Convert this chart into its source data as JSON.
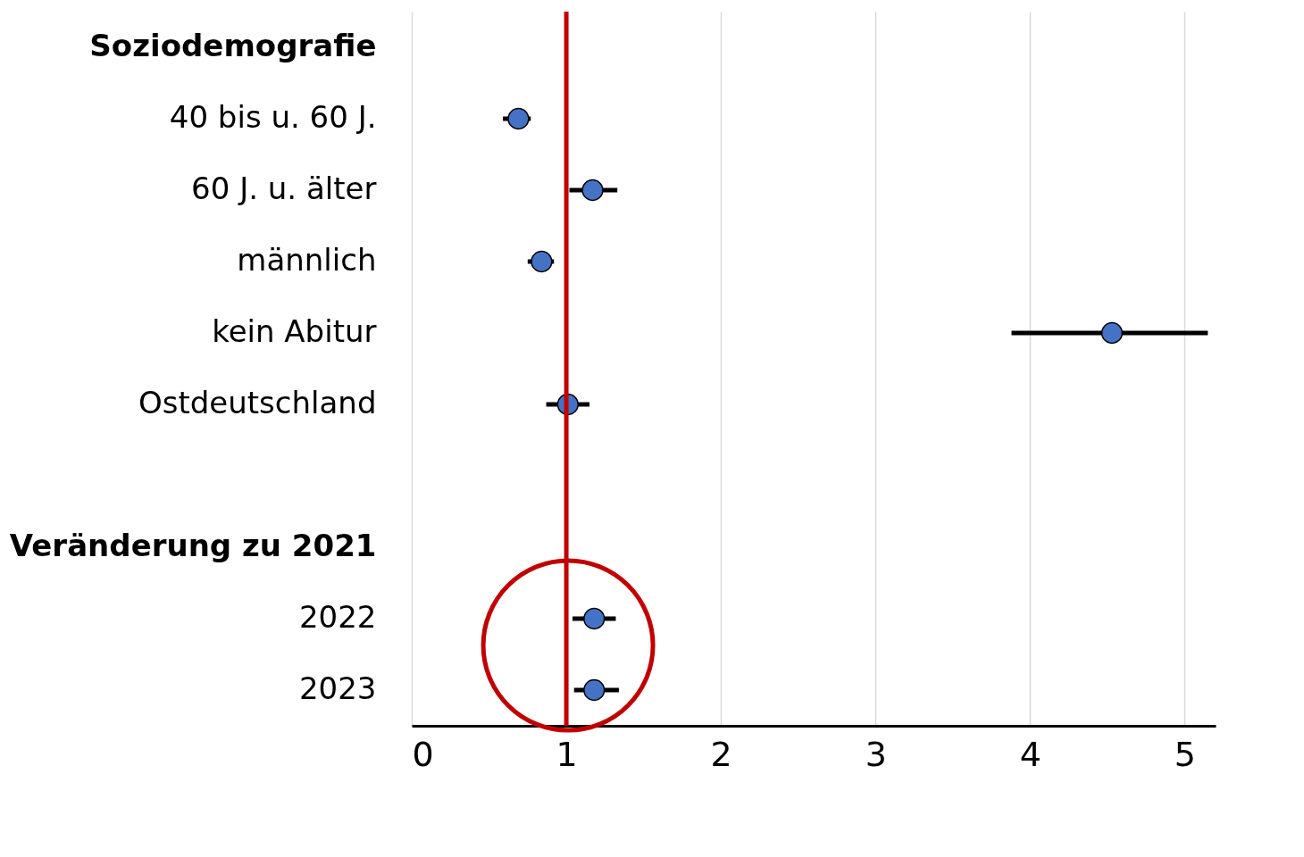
{
  "chart_data": {
    "type": "scatter",
    "orientation": "horizontal",
    "categories": [
      "Soziodemografie",
      "40 bis u. 60 J.",
      "60 J. u. älter",
      "männlich",
      "kein Abitur",
      "Ostdeutschland",
      null,
      "Veränderung zu 2021",
      "2022",
      "2023"
    ],
    "values": [
      null,
      0.69,
      1.17,
      0.84,
      4.53,
      1.01,
      null,
      null,
      1.18,
      1.18
    ],
    "errors": [
      null,
      [
        0.59,
        0.77
      ],
      [
        1.02,
        1.33
      ],
      [
        0.75,
        0.92
      ],
      [
        3.88,
        5.15
      ],
      [
        0.87,
        1.15
      ],
      null,
      null,
      [
        1.04,
        1.32
      ],
      [
        1.05,
        1.34
      ]
    ],
    "color": "#4472c4",
    "marker": "circle",
    "xlim": [
      0,
      5.2
    ],
    "xticks": [
      0,
      1,
      2,
      3,
      4,
      5
    ],
    "grid": "x",
    "ref_lines": [
      {
        "axis": "x",
        "value": 1,
        "color": "#c00000"
      }
    ]
  }
}
